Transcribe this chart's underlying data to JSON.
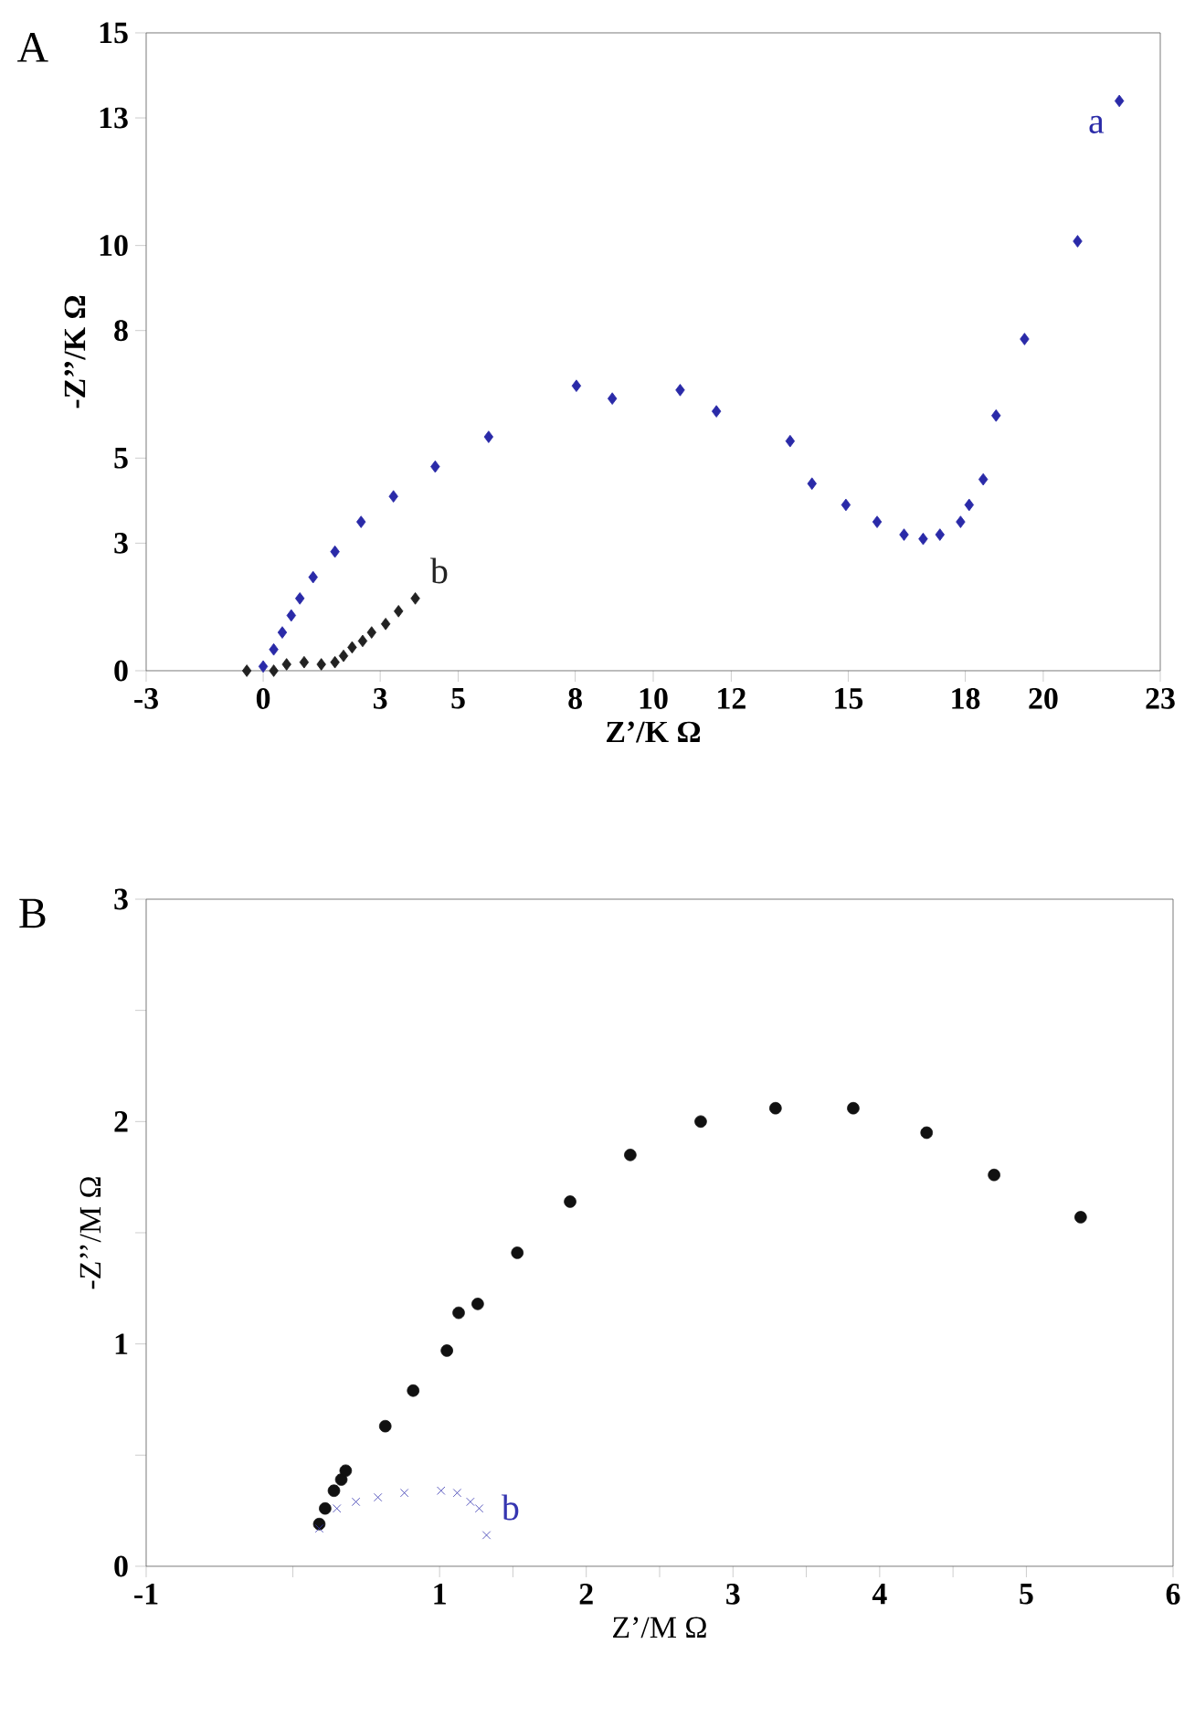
{
  "chart_data": [
    {
      "type": "scatter",
      "title": "A",
      "xlabel": "Z’/K Ω",
      "ylabel": "-Z’’/K Ω",
      "xlim": [
        -3,
        23
      ],
      "ylim": [
        0,
        15
      ],
      "xticks": [
        -3,
        0,
        3,
        5,
        8,
        10,
        12,
        15,
        18,
        20,
        23
      ],
      "yticks": [
        0,
        3,
        5,
        8,
        10,
        13,
        15
      ],
      "series": [
        {
          "name": "a",
          "color": "#2a2aa8",
          "marker": "diamond",
          "x": [
            0.0,
            0.27,
            0.49,
            0.72,
            0.94,
            1.28,
            1.84,
            2.51,
            3.34,
            4.41,
            5.78,
            8.03,
            8.95,
            10.69,
            11.62,
            13.51,
            14.07,
            14.94,
            15.74,
            16.43,
            16.92,
            17.35,
            17.88,
            18.1,
            18.46,
            18.79,
            19.52,
            20.88,
            21.95
          ],
          "values": [
            0.1,
            0.5,
            0.9,
            1.3,
            1.7,
            2.2,
            2.8,
            3.5,
            4.1,
            4.8,
            5.5,
            6.7,
            6.4,
            6.6,
            6.1,
            5.4,
            4.4,
            3.9,
            3.5,
            3.2,
            3.1,
            3.2,
            3.5,
            3.9,
            4.5,
            6.0,
            7.8,
            10.1,
            13.4
          ]
        },
        {
          "name": "b",
          "color": "#222222",
          "marker": "diamond",
          "x": [
            -0.42,
            0.27,
            0.6,
            1.05,
            1.49,
            1.84,
            2.06,
            2.28,
            2.55,
            2.78,
            3.14,
            3.47,
            3.9
          ],
          "values": [
            0.0,
            0.0,
            0.15,
            0.2,
            0.15,
            0.2,
            0.35,
            0.55,
            0.7,
            0.9,
            1.1,
            1.4,
            1.7
          ]
        }
      ]
    },
    {
      "type": "scatter",
      "title": "B",
      "xlabel": "Z’/M Ω",
      "ylabel": "-Z’’/M Ω",
      "xlim": [
        -1,
        6
      ],
      "ylim": [
        0,
        3
      ],
      "xticks": [
        -1,
        {
          "value": 0,
          "label": null
        },
        1,
        {
          "value": 1.5,
          "label": null
        },
        2,
        {
          "value": 2.5,
          "label": null
        },
        3,
        {
          "value": 3.5,
          "label": null
        },
        4,
        {
          "value": 4.5,
          "label": null
        },
        5,
        6
      ],
      "yticks": [
        0,
        {
          "value": 0.5,
          "label": null
        },
        1,
        {
          "value": 1.5,
          "label": null
        },
        2,
        {
          "value": 2.5,
          "label": null
        },
        3
      ],
      "series": [
        {
          "color": "#111111",
          "marker": "circle",
          "x": [
            0.18,
            0.22,
            0.28,
            0.33,
            0.36,
            0.63,
            0.82,
            1.05,
            1.13,
            1.26,
            1.53,
            1.89,
            2.3,
            2.78,
            3.29,
            3.82,
            4.32,
            4.78,
            5.37
          ],
          "values": [
            0.19,
            0.26,
            0.34,
            0.39,
            0.43,
            0.63,
            0.79,
            0.97,
            1.14,
            1.18,
            1.41,
            1.64,
            1.85,
            2.0,
            2.06,
            2.06,
            1.95,
            1.76,
            1.57
          ]
        },
        {
          "name": "b",
          "color": "#3535b0",
          "marker": "cross",
          "x": [
            0.18,
            0.3,
            0.43,
            0.58,
            0.76,
            1.01,
            1.12,
            1.21,
            1.27,
            1.32
          ],
          "values": [
            0.17,
            0.26,
            0.29,
            0.31,
            0.33,
            0.34,
            0.33,
            0.29,
            0.26,
            0.14
          ]
        }
      ]
    }
  ]
}
